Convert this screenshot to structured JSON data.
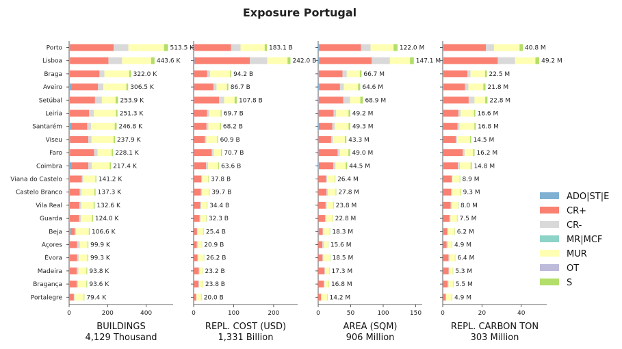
{
  "title": "Exposure Portugal",
  "colors": {
    "ADO|ST|E": "#80b1d3",
    "CR+": "#fa8072",
    "CR-": "#d9d9d9",
    "MR|MCF": "#8dd3c7",
    "MUR": "#ffffb3",
    "OT": "#bebada",
    "S": "#b3de69"
  },
  "chart_data": {
    "type": "bar",
    "orientation": "horizontal",
    "stacked": true,
    "categories": [
      "Porto",
      "Lisboa",
      "Braga",
      "Aveiro",
      "Setúbal",
      "Leiria",
      "Santarém",
      "Viseu",
      "Faro",
      "Coimbra",
      "Viana do Castelo",
      "Castelo Branco",
      "Vila Real",
      "Guarda",
      "Beja",
      "Açores",
      "Évora",
      "Madeira",
      "Bragança",
      "Portalegre"
    ],
    "series_names": [
      "ADO|ST|E",
      "CR+",
      "CR-",
      "MR|MCF",
      "MUR",
      "OT",
      "S"
    ],
    "legend_position": "right",
    "panels": [
      {
        "xlabel": "BUILDINGS",
        "subtitle": "4,129 Thousand",
        "xlim": [
          0,
          540
        ],
        "xticks": [
          0,
          200,
          400
        ],
        "totals": [
          513.5,
          443.6,
          322.0,
          306.5,
          253.9,
          251.3,
          246.8,
          237.9,
          228.1,
          217.4,
          141.2,
          137.3,
          132.6,
          124.0,
          106.6,
          99.9,
          99.3,
          93.8,
          93.6,
          79.4
        ],
        "total_labels": [
          "513.5 K",
          "443.6 K",
          "322.0 K",
          "306.5 K",
          "253.9 K",
          "251.3 K",
          "246.8 K",
          "237.9 K",
          "228.1 K",
          "217.4 K",
          "141.2 K",
          "137.3 K",
          "132.6 K",
          "124.0 K",
          "106.6 K",
          "99.9 K",
          "99.3 K",
          "93.8 K",
          "93.6 K",
          "79.4 K"
        ],
        "shares": {
          "ADO|ST|E": [
            0.01,
            0.01,
            0.01,
            0.04,
            0.01,
            0.01,
            0.05,
            0.02,
            0.02,
            0.05,
            0.02,
            0.02,
            0.02,
            0.02,
            0.08,
            0.01,
            0.02,
            0.02,
            0.02,
            0.01
          ],
          "CR+": [
            0.44,
            0.45,
            0.48,
            0.45,
            0.52,
            0.4,
            0.33,
            0.4,
            0.55,
            0.41,
            0.45,
            0.38,
            0.38,
            0.4,
            0.2,
            0.4,
            0.4,
            0.4,
            0.4,
            0.3
          ],
          "CR-": [
            0.15,
            0.16,
            0.08,
            0.09,
            0.14,
            0.1,
            0.08,
            0.07,
            0.08,
            0.08,
            0.05,
            0.07,
            0.08,
            0.08,
            0.05,
            0.15,
            0.08,
            0.1,
            0.07,
            0.05
          ],
          "MR|MCF": [
            0.0,
            0.0,
            0.0,
            0.0,
            0.0,
            0.0,
            0.0,
            0.0,
            0.0,
            0.0,
            0.0,
            0.0,
            0.0,
            0.0,
            0.0,
            0.0,
            0.0,
            0.0,
            0.0,
            0.0
          ],
          "MUR": [
            0.36,
            0.34,
            0.4,
            0.39,
            0.28,
            0.46,
            0.5,
            0.48,
            0.32,
            0.43,
            0.45,
            0.49,
            0.48,
            0.46,
            0.63,
            0.4,
            0.46,
            0.44,
            0.47,
            0.6
          ],
          "OT": [
            0.0,
            0.0,
            0.0,
            0.0,
            0.0,
            0.0,
            0.0,
            0.0,
            0.0,
            0.0,
            0.0,
            0.0,
            0.0,
            0.0,
            0.0,
            0.0,
            0.0,
            0.0,
            0.0,
            0.0
          ],
          "S": [
            0.04,
            0.04,
            0.03,
            0.03,
            0.05,
            0.03,
            0.04,
            0.03,
            0.03,
            0.03,
            0.03,
            0.04,
            0.04,
            0.04,
            0.04,
            0.04,
            0.04,
            0.04,
            0.04,
            0.04
          ]
        }
      },
      {
        "xlabel": "REPL. COST (USD)",
        "subtitle": "1,331 Billion",
        "xlim": [
          0,
          260
        ],
        "xticks": [
          0,
          100,
          200
        ],
        "totals": [
          183.1,
          242.0,
          94.2,
          86.7,
          107.8,
          69.7,
          68.2,
          60.9,
          70.7,
          63.6,
          37.8,
          39.7,
          34.4,
          32.3,
          25.4,
          20.9,
          26.2,
          23.2,
          23.8,
          20.0
        ],
        "total_labels": [
          "183.1 B",
          "242.0 B",
          "94.2 B",
          "86.7 B",
          "107.8 B",
          "69.7 B",
          "68.2 B",
          "60.9 B",
          "70.7 B",
          "63.6 B",
          "37.8 B",
          "39.7 B",
          "34.4 B",
          "32.3 B",
          "25.4 B",
          "20.9 B",
          "26.2 B",
          "23.2 B",
          "23.8 B",
          "20.0 B"
        ],
        "shares": {
          "ADO|ST|E": [
            0.01,
            0.01,
            0.01,
            0.02,
            0.01,
            0.01,
            0.02,
            0.01,
            0.01,
            0.02,
            0.01,
            0.01,
            0.01,
            0.01,
            0.03,
            0.01,
            0.01,
            0.01,
            0.01,
            0.01
          ],
          "CR+": [
            0.5,
            0.57,
            0.35,
            0.55,
            0.58,
            0.47,
            0.45,
            0.45,
            0.63,
            0.47,
            0.5,
            0.45,
            0.47,
            0.45,
            0.3,
            0.37,
            0.35,
            0.55,
            0.5,
            0.3
          ],
          "CR-": [
            0.13,
            0.18,
            0.08,
            0.09,
            0.12,
            0.08,
            0.07,
            0.06,
            0.07,
            0.08,
            0.05,
            0.07,
            0.08,
            0.07,
            0.05,
            0.15,
            0.08,
            0.07,
            0.08,
            0.05
          ],
          "MR|MCF": [
            0.0,
            0.0,
            0.0,
            0.0,
            0.0,
            0.0,
            0.0,
            0.0,
            0.0,
            0.0,
            0.0,
            0.0,
            0.0,
            0.0,
            0.0,
            0.0,
            0.0,
            0.0,
            0.0,
            0.0
          ],
          "MUR": [
            0.33,
            0.21,
            0.53,
            0.3,
            0.24,
            0.41,
            0.43,
            0.45,
            0.26,
            0.4,
            0.41,
            0.44,
            0.41,
            0.44,
            0.59,
            0.44,
            0.53,
            0.34,
            0.38,
            0.6
          ],
          "OT": [
            0.0,
            0.0,
            0.0,
            0.0,
            0.0,
            0.0,
            0.0,
            0.0,
            0.0,
            0.0,
            0.0,
            0.0,
            0.0,
            0.0,
            0.0,
            0.0,
            0.0,
            0.0,
            0.0,
            0.0
          ],
          "S": [
            0.03,
            0.03,
            0.03,
            0.04,
            0.05,
            0.03,
            0.03,
            0.03,
            0.03,
            0.03,
            0.03,
            0.03,
            0.03,
            0.03,
            0.03,
            0.03,
            0.03,
            0.03,
            0.03,
            0.04
          ]
        }
      },
      {
        "xlabel": "AREA (SQM)",
        "subtitle": "906 Million",
        "xlim": [
          0,
          160
        ],
        "xticks": [
          0,
          50,
          100,
          150
        ],
        "totals": [
          122.0,
          147.1,
          66.7,
          64.6,
          68.9,
          49.2,
          49.3,
          43.3,
          49.0,
          44.5,
          26.4,
          27.8,
          23.8,
          22.8,
          18.3,
          15.6,
          18.5,
          17.3,
          16.8,
          14.2
        ],
        "total_labels": [
          "122.0 M",
          "147.1 M",
          "66.7 M",
          "64.6 M",
          "68.9 M",
          "49.2 M",
          "49.3 M",
          "43.3 M",
          "49.0 M",
          "44.5 M",
          "26.4 M",
          "27.8 M",
          "23.8 M",
          "22.8 M",
          "18.3 M",
          "15.6 M",
          "18.5 M",
          "17.3 M",
          "16.8 M",
          "14.2 M"
        ],
        "shares": {
          "ADO|ST|E": [
            0.01,
            0.01,
            0.01,
            0.02,
            0.01,
            0.01,
            0.02,
            0.01,
            0.01,
            0.02,
            0.01,
            0.01,
            0.01,
            0.01,
            0.03,
            0.01,
            0.01,
            0.01,
            0.01,
            0.01
          ],
          "CR+": [
            0.53,
            0.55,
            0.55,
            0.5,
            0.55,
            0.47,
            0.42,
            0.45,
            0.6,
            0.5,
            0.45,
            0.45,
            0.47,
            0.45,
            0.35,
            0.4,
            0.35,
            0.55,
            0.5,
            0.3
          ],
          "CR-": [
            0.12,
            0.19,
            0.1,
            0.09,
            0.15,
            0.08,
            0.08,
            0.07,
            0.07,
            0.08,
            0.06,
            0.08,
            0.08,
            0.07,
            0.05,
            0.15,
            0.08,
            0.07,
            0.08,
            0.05
          ],
          "MR|MCF": [
            0.0,
            0.0,
            0.0,
            0.0,
            0.0,
            0.0,
            0.0,
            0.0,
            0.0,
            0.0,
            0.0,
            0.0,
            0.0,
            0.0,
            0.0,
            0.0,
            0.0,
            0.0,
            0.0,
            0.0
          ],
          "MUR": [
            0.29,
            0.21,
            0.3,
            0.34,
            0.23,
            0.39,
            0.43,
            0.42,
            0.27,
            0.35,
            0.45,
            0.43,
            0.41,
            0.44,
            0.54,
            0.41,
            0.53,
            0.34,
            0.38,
            0.6
          ],
          "OT": [
            0.0,
            0.0,
            0.0,
            0.0,
            0.0,
            0.0,
            0.0,
            0.0,
            0.0,
            0.0,
            0.0,
            0.0,
            0.0,
            0.0,
            0.0,
            0.0,
            0.0,
            0.0,
            0.0,
            0.0
          ],
          "S": [
            0.05,
            0.04,
            0.04,
            0.05,
            0.06,
            0.05,
            0.05,
            0.05,
            0.05,
            0.05,
            0.03,
            0.03,
            0.03,
            0.03,
            0.03,
            0.03,
            0.03,
            0.03,
            0.03,
            0.04
          ]
        }
      },
      {
        "xlabel": "REPL. CARBON TON",
        "subtitle": "303 Million",
        "xlim": [
          0,
          53
        ],
        "xticks": [
          0,
          20,
          40
        ],
        "totals": [
          40.8,
          49.2,
          22.5,
          21.8,
          22.8,
          16.6,
          16.8,
          14.5,
          16.2,
          14.8,
          8.9,
          9.3,
          8.0,
          7.5,
          6.2,
          4.9,
          6.4,
          5.3,
          5.5,
          4.9
        ],
        "total_labels": [
          "40.8 M",
          "49.2 M",
          "22.5 M",
          "21.8 M",
          "22.8 M",
          "16.6 M",
          "16.8 M",
          "14.5 M",
          "16.2 M",
          "14.8 M",
          "8.9 M",
          "9.3 M",
          "8.0 M",
          "7.5 M",
          "6.2 M",
          "4.9 M",
          "6.4 M",
          "5.3 M",
          "5.5 M",
          "4.9 M"
        ],
        "shares": {
          "ADO|ST|E": [
            0.01,
            0.01,
            0.01,
            0.02,
            0.01,
            0.01,
            0.02,
            0.01,
            0.01,
            0.02,
            0.01,
            0.01,
            0.01,
            0.01,
            0.03,
            0.01,
            0.01,
            0.01,
            0.01,
            0.01
          ],
          "CR+": [
            0.53,
            0.56,
            0.55,
            0.5,
            0.57,
            0.47,
            0.43,
            0.45,
            0.62,
            0.5,
            0.5,
            0.45,
            0.5,
            0.45,
            0.35,
            0.4,
            0.45,
            0.55,
            0.45,
            0.3
          ],
          "CR-": [
            0.1,
            0.18,
            0.07,
            0.08,
            0.13,
            0.07,
            0.06,
            0.05,
            0.06,
            0.07,
            0.05,
            0.07,
            0.07,
            0.07,
            0.05,
            0.15,
            0.08,
            0.07,
            0.08,
            0.05
          ],
          "MR|MCF": [
            0.0,
            0.0,
            0.0,
            0.0,
            0.0,
            0.0,
            0.0,
            0.0,
            0.0,
            0.0,
            0.0,
            0.0,
            0.0,
            0.0,
            0.0,
            0.0,
            0.0,
            0.0,
            0.0,
            0.0
          ],
          "MUR": [
            0.32,
            0.21,
            0.33,
            0.35,
            0.24,
            0.41,
            0.45,
            0.45,
            0.27,
            0.37,
            0.41,
            0.44,
            0.39,
            0.44,
            0.54,
            0.41,
            0.43,
            0.34,
            0.43,
            0.6
          ],
          "OT": [
            0.0,
            0.0,
            0.0,
            0.0,
            0.0,
            0.0,
            0.0,
            0.0,
            0.0,
            0.0,
            0.0,
            0.0,
            0.0,
            0.0,
            0.0,
            0.0,
            0.0,
            0.0,
            0.0,
            0.0
          ],
          "S": [
            0.04,
            0.04,
            0.04,
            0.05,
            0.05,
            0.04,
            0.04,
            0.04,
            0.04,
            0.04,
            0.03,
            0.03,
            0.03,
            0.03,
            0.03,
            0.03,
            0.03,
            0.03,
            0.03,
            0.04
          ]
        }
      }
    ]
  }
}
